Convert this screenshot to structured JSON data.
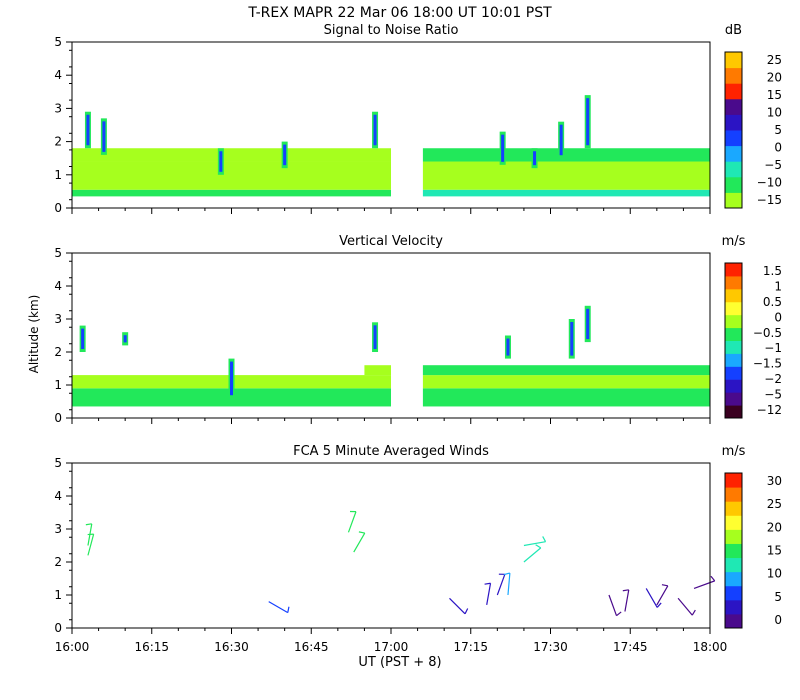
{
  "title": "T-REX   MAPR 22 Mar 06   18:00 UT   10:01   PST",
  "ylabel": "Altitude (km)",
  "xlabel": "UT  (PST + 8)",
  "xticks": [
    "16:00",
    "16:15",
    "16:30",
    "16:45",
    "17:00",
    "17:15",
    "17:30",
    "17:45",
    "18:00"
  ],
  "chart_data": [
    {
      "type": "heatmap",
      "title": "Signal to Noise Ratio",
      "xlabel": "UT  (PST + 8)",
      "ylabel": "Altitude (km)",
      "xlim": [
        0,
        120
      ],
      "ylim": [
        0,
        5
      ],
      "yticks": [
        0,
        1,
        2,
        3,
        4,
        5
      ],
      "colorbar": {
        "unit": "dB",
        "ticks": [
          "25",
          "20",
          "15",
          "10",
          "5",
          "0",
          "−5",
          "−10",
          "−15"
        ],
        "colors": [
          "#a6ff1e",
          "#22e85a",
          "#1fe8b4",
          "#1aa8ff",
          "#1440ff",
          "#2b14c4",
          "#4a0a8c",
          "#ff2200",
          "#ff7a00",
          "#ffc800"
        ]
      },
      "data_gap_minutes": [
        60,
        66
      ],
      "rows": [
        {
          "ymin": 0.35,
          "ymax": 0.55,
          "segments": [
            [
              0,
              60,
              "#22e85a"
            ],
            [
              66,
              120,
              "#1fe8b4"
            ]
          ]
        },
        {
          "ymin": 0.55,
          "ymax": 1.4,
          "segments": [
            [
              0,
              60,
              "#a6ff1e"
            ],
            [
              66,
              120,
              "#a6ff1e"
            ]
          ]
        },
        {
          "ymin": 1.4,
          "ymax": 1.8,
          "segments": [
            [
              0,
              60,
              "#a6ff1e"
            ],
            [
              66,
              120,
              "#22e85a"
            ]
          ]
        }
      ],
      "spikes": [
        {
          "minute": 3,
          "ymin": 1.8,
          "ymax": 2.9
        },
        {
          "minute": 6,
          "ymin": 1.6,
          "ymax": 2.7
        },
        {
          "minute": 28,
          "ymin": 1.0,
          "ymax": 1.8
        },
        {
          "minute": 40,
          "ymin": 1.2,
          "ymax": 2.0
        },
        {
          "minute": 57,
          "ymin": 1.8,
          "ymax": 2.9
        },
        {
          "minute": 81,
          "ymin": 1.3,
          "ymax": 2.3
        },
        {
          "minute": 87,
          "ymin": 1.2,
          "ymax": 1.8
        },
        {
          "minute": 92,
          "ymin": 1.5,
          "ymax": 2.6
        },
        {
          "minute": 97,
          "ymin": 1.8,
          "ymax": 3.4
        }
      ]
    },
    {
      "type": "heatmap",
      "title": "Vertical Velocity",
      "xlabel": "UT  (PST + 8)",
      "ylabel": "Altitude (km)",
      "xlim": [
        0,
        120
      ],
      "ylim": [
        0,
        5
      ],
      "yticks": [
        0,
        1,
        2,
        3,
        4,
        5
      ],
      "colorbar": {
        "unit": "m/s",
        "ticks": [
          "1.5",
          "1",
          "0.5",
          "0",
          "−0.5",
          "−1",
          "−1.5",
          "−2",
          "−5",
          "−12"
        ],
        "colors": [
          "#3a0020",
          "#4a0a8c",
          "#2b14c4",
          "#1440ff",
          "#1aa8ff",
          "#1fe8b4",
          "#22e85a",
          "#a6ff1e",
          "#ffff30",
          "#ffc800",
          "#ff7a00",
          "#ff2200"
        ]
      },
      "data_gap_minutes": [
        60,
        66
      ],
      "rows": [
        {
          "ymin": 0.35,
          "ymax": 0.9,
          "segments": [
            [
              0,
              60,
              "#22e85a"
            ],
            [
              66,
              120,
              "#22e85a"
            ]
          ]
        },
        {
          "ymin": 0.9,
          "ymax": 1.3,
          "segments": [
            [
              0,
              60,
              "#a6ff1e"
            ],
            [
              66,
              120,
              "#a6ff1e"
            ]
          ]
        },
        {
          "ymin": 1.3,
          "ymax": 1.6,
          "segments": [
            [
              55,
              60,
              "#a6ff1e"
            ],
            [
              66,
              120,
              "#22e85a"
            ]
          ]
        }
      ],
      "spikes": [
        {
          "minute": 2,
          "ymin": 2.0,
          "ymax": 2.8
        },
        {
          "minute": 10,
          "ymin": 2.2,
          "ymax": 2.6
        },
        {
          "minute": 30,
          "ymin": 0.6,
          "ymax": 1.8
        },
        {
          "minute": 57,
          "ymin": 2.0,
          "ymax": 2.9
        },
        {
          "minute": 82,
          "ymin": 1.8,
          "ymax": 2.5
        },
        {
          "minute": 94,
          "ymin": 1.8,
          "ymax": 3.0
        },
        {
          "minute": 97,
          "ymin": 2.3,
          "ymax": 3.4
        }
      ]
    },
    {
      "type": "scatter",
      "title": "FCA 5 Minute Averaged Winds",
      "xlabel": "UT  (PST + 8)",
      "ylabel": "Altitude (km)",
      "xlim": [
        0,
        120
      ],
      "ylim": [
        0,
        5
      ],
      "yticks": [
        0,
        1,
        2,
        3,
        4,
        5
      ],
      "colorbar": {
        "unit": "m/s",
        "ticks": [
          "30",
          "25",
          "20",
          "15",
          "10",
          "5",
          "0"
        ],
        "colors": [
          "#4a0a8c",
          "#2b14c4",
          "#1440ff",
          "#1aa8ff",
          "#1fe8b4",
          "#22e85a",
          "#a6ff1e",
          "#ffff30",
          "#ffc800",
          "#ff7a00",
          "#ff2200"
        ]
      },
      "barbs": [
        {
          "minute": 3,
          "altitude": 2.2,
          "angle_deg": 75,
          "color": "#22e85a"
        },
        {
          "minute": 3,
          "altitude": 2.5,
          "angle_deg": 80,
          "color": "#22e85a"
        },
        {
          "minute": 37,
          "altitude": 0.8,
          "angle_deg": -30,
          "color": "#1440ff"
        },
        {
          "minute": 52,
          "altitude": 2.9,
          "angle_deg": 70,
          "color": "#22e85a"
        },
        {
          "minute": 53,
          "altitude": 2.3,
          "angle_deg": 60,
          "color": "#22e85a"
        },
        {
          "minute": 71,
          "altitude": 0.9,
          "angle_deg": -45,
          "color": "#2b14c4"
        },
        {
          "minute": 78,
          "altitude": 0.7,
          "angle_deg": 80,
          "color": "#2b14c4"
        },
        {
          "minute": 80,
          "altitude": 1.0,
          "angle_deg": 70,
          "color": "#2b14c4"
        },
        {
          "minute": 82,
          "altitude": 1.0,
          "angle_deg": 85,
          "color": "#1aa8ff"
        },
        {
          "minute": 85,
          "altitude": 2.5,
          "angle_deg": 10,
          "color": "#1fe8b4"
        },
        {
          "minute": 85,
          "altitude": 2.0,
          "angle_deg": 40,
          "color": "#1fe8b4"
        },
        {
          "minute": 101,
          "altitude": 1.0,
          "angle_deg": -70,
          "color": "#4a0a8c"
        },
        {
          "minute": 104,
          "altitude": 0.5,
          "angle_deg": 80,
          "color": "#4a0a8c"
        },
        {
          "minute": 108,
          "altitude": 1.2,
          "angle_deg": -60,
          "color": "#2b14c4"
        },
        {
          "minute": 110,
          "altitude": 0.7,
          "angle_deg": 60,
          "color": "#4a0a8c"
        },
        {
          "minute": 114,
          "altitude": 0.9,
          "angle_deg": -50,
          "color": "#4a0a8c"
        },
        {
          "minute": 117,
          "altitude": 1.2,
          "angle_deg": 20,
          "color": "#4a0a8c"
        }
      ]
    }
  ]
}
